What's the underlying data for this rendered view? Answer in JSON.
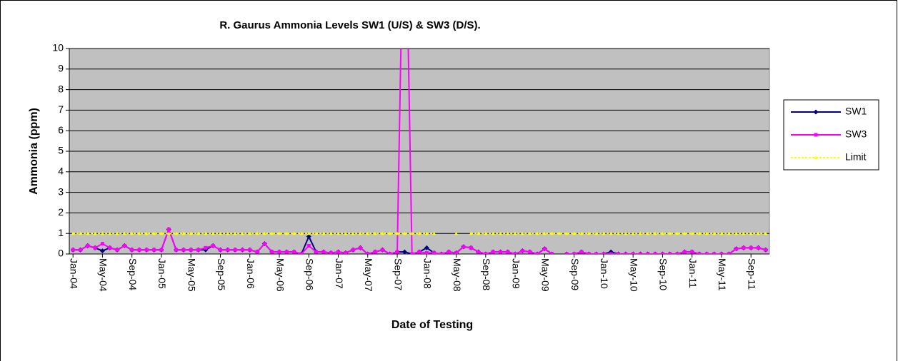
{
  "chart_data": {
    "type": "line",
    "title": "R. Gaurus Ammonia Levels SW1 (U/S) & SW3 (D/S).",
    "x_label": "Date of Testing",
    "y_label": "Ammonia (ppm)",
    "categories": [
      "Jan-04",
      null,
      null,
      null,
      "May-04",
      null,
      null,
      null,
      "Sep-04",
      null,
      null,
      null,
      "Jan-05",
      null,
      null,
      null,
      "May-05",
      null,
      null,
      null,
      "Sep-05",
      null,
      null,
      null,
      "Jan-06",
      null,
      null,
      null,
      "May-06",
      null,
      null,
      null,
      "Sep-06",
      null,
      null,
      null,
      "Jan-07",
      null,
      null,
      null,
      "May-07",
      null,
      null,
      null,
      "Sep-07",
      null,
      null,
      null,
      "Jan-08",
      null,
      null,
      null,
      "May-08",
      null,
      null,
      null,
      "Sep-08",
      null,
      null,
      null,
      "Jan-09",
      null,
      null,
      null,
      "May-09",
      null,
      null,
      null,
      "Sep-09",
      null,
      null,
      null,
      "Jan-10",
      null,
      null,
      null,
      "May-10",
      null,
      null,
      null,
      "Sep-10",
      null,
      null,
      null,
      "Jan-11",
      null,
      null,
      null,
      "May-11",
      null,
      null,
      null,
      "Sep-11",
      null,
      null
    ],
    "series": [
      {
        "name": "SW1",
        "color": "#000080",
        "marker": "diamond",
        "values": [
          0.2,
          0.2,
          0.4,
          0.3,
          0.15,
          0.3,
          0.2,
          0.4,
          0.2,
          0.2,
          0.2,
          0.2,
          0.2,
          1.2,
          0.2,
          0.2,
          0.2,
          0.2,
          0.2,
          0.4,
          0.2,
          0.2,
          0.2,
          0.2,
          0.2,
          0.1,
          0.5,
          0.1,
          0.1,
          0.1,
          0.1,
          0.0,
          0.85,
          0.1,
          0.1,
          0.05,
          0.1,
          0.05,
          0.2,
          0.3,
          0.0,
          0.1,
          0.2,
          0.0,
          0.1,
          0.1,
          0.0,
          0.1,
          0.3,
          0.05,
          0.0,
          0.1,
          0.05,
          0.35,
          0.3,
          0.1,
          0.0,
          0.1,
          0.1,
          0.1,
          0.0,
          0.15,
          0.1,
          0.0,
          0.25,
          0.0,
          null,
          0.0,
          0.0,
          0.1,
          0.0,
          0.0,
          0.0,
          0.1,
          0.0,
          0.0,
          0.0,
          0.0,
          0.0,
          0.0,
          0.0,
          0.0,
          0.0,
          0.1,
          0.1,
          0.0,
          0.0,
          0.0,
          0.0,
          0.0,
          0.25,
          0.3,
          0.3,
          0.3,
          0.2
        ]
      },
      {
        "name": "SW3",
        "color": "#ff00ff",
        "marker": "square",
        "values": [
          0.2,
          0.2,
          0.4,
          0.3,
          0.5,
          0.3,
          0.2,
          0.4,
          0.2,
          0.2,
          0.2,
          0.2,
          0.2,
          1.2,
          0.2,
          0.2,
          0.2,
          0.2,
          0.3,
          0.4,
          0.2,
          0.2,
          0.2,
          0.2,
          0.2,
          0.1,
          0.5,
          0.1,
          0.1,
          0.1,
          0.1,
          0.0,
          0.4,
          0.1,
          0.1,
          0.05,
          0.1,
          0.05,
          0.2,
          0.3,
          0.0,
          0.1,
          0.2,
          0.0,
          0.1,
          20,
          0.0,
          0.1,
          0.05,
          0.05,
          0.0,
          0.1,
          0.05,
          0.35,
          0.3,
          0.1,
          0.0,
          0.1,
          0.1,
          0.1,
          0.0,
          0.15,
          0.1,
          0.0,
          0.25,
          0.0,
          null,
          0.0,
          0.0,
          0.1,
          0.0,
          0.0,
          0.0,
          0.0,
          0.0,
          0.0,
          0.0,
          0.0,
          0.0,
          0.0,
          0.0,
          0.0,
          0.0,
          0.1,
          0.1,
          0.0,
          0.0,
          0.0,
          0.0,
          0.0,
          0.25,
          0.3,
          0.3,
          0.3,
          0.2
        ]
      },
      {
        "name": "Limit",
        "color": "#ffff00",
        "marker": "triangle",
        "dashed": true,
        "values": [
          1,
          1,
          1,
          1,
          1,
          1,
          1,
          1,
          1,
          1,
          1,
          1,
          1,
          1,
          1,
          1,
          1,
          1,
          1,
          1,
          1,
          1,
          1,
          1,
          1,
          1,
          1,
          1,
          1,
          1,
          1,
          1,
          1,
          1,
          1,
          1,
          1,
          1,
          1,
          1,
          1,
          1,
          1,
          1,
          1,
          1,
          1,
          1,
          1,
          1,
          null,
          null,
          1,
          null,
          1,
          1,
          1,
          1,
          1,
          1,
          1,
          1,
          1,
          1,
          1,
          1,
          1,
          1,
          1,
          1,
          1,
          1,
          1,
          1,
          1,
          1,
          1,
          1,
          1,
          1,
          1,
          1,
          1,
          1,
          1,
          1,
          1,
          1,
          1,
          1,
          1,
          1,
          1,
          1,
          1
        ]
      }
    ],
    "ylim": [
      0,
      10
    ],
    "yticks": [
      0,
      1,
      2,
      3,
      4,
      5,
      6,
      7,
      8,
      9,
      10
    ],
    "grid": true,
    "plot_background": "#c0c0c0",
    "legend": "right"
  }
}
